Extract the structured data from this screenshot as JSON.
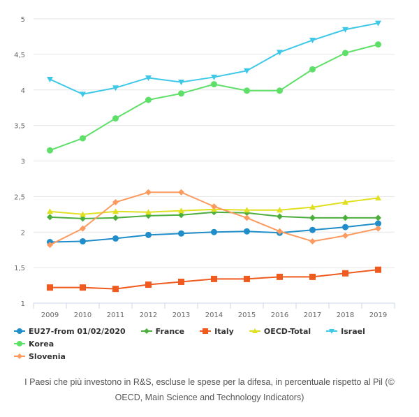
{
  "chart_data": {
    "type": "line",
    "title": "",
    "xlabel": "",
    "ylabel": "",
    "x": [
      "2009",
      "2010",
      "2011",
      "2012",
      "2013",
      "2014",
      "2015",
      "2016",
      "2017",
      "2018",
      "2019"
    ],
    "ylim": [
      1,
      5
    ],
    "yticks": [
      1,
      1.5,
      2,
      2.5,
      3,
      3.5,
      4,
      4.5,
      5
    ],
    "ytick_labels": [
      "1",
      "1,5",
      "2",
      "2,5",
      "3",
      "3,5",
      "4",
      "4,5",
      "5"
    ],
    "grid": true,
    "legend_position": "bottom-left",
    "series": [
      {
        "name": "EU27-from 01/02/2020",
        "color": "#1f8dc9",
        "marker": "circle",
        "values": [
          1.86,
          1.87,
          1.91,
          1.96,
          1.98,
          2.0,
          2.01,
          1.99,
          2.03,
          2.07,
          2.12
        ]
      },
      {
        "name": "France",
        "color": "#4cae3c",
        "marker": "diamond",
        "values": [
          2.21,
          2.19,
          2.2,
          2.23,
          2.24,
          2.28,
          2.27,
          2.22,
          2.2,
          2.2,
          2.2
        ]
      },
      {
        "name": "Italy",
        "color": "#f05a1e",
        "marker": "square",
        "values": [
          1.22,
          1.22,
          1.2,
          1.26,
          1.3,
          1.34,
          1.34,
          1.37,
          1.37,
          1.42,
          1.47
        ]
      },
      {
        "name": "OECD-Total",
        "color": "#e0e020",
        "marker": "triangle-up",
        "values": [
          2.29,
          2.25,
          2.29,
          2.28,
          2.3,
          2.32,
          2.31,
          2.31,
          2.35,
          2.42,
          2.48
        ]
      },
      {
        "name": "Israel",
        "color": "#3ec8e8",
        "marker": "triangle-down",
        "values": [
          4.15,
          3.94,
          4.03,
          4.17,
          4.11,
          4.18,
          4.27,
          4.53,
          4.7,
          4.85,
          4.94
        ]
      },
      {
        "name": "Korea",
        "color": "#5ee068",
        "marker": "circle",
        "values": [
          3.15,
          3.32,
          3.6,
          3.86,
          3.95,
          4.08,
          3.99,
          3.99,
          4.29,
          4.52,
          4.64
        ]
      },
      {
        "name": "Slovenia",
        "color": "#fd9a60",
        "marker": "diamond",
        "values": [
          1.82,
          2.05,
          2.42,
          2.56,
          2.56,
          2.36,
          2.2,
          2.01,
          1.87,
          1.95,
          2.05
        ]
      }
    ]
  },
  "caption": {
    "line1": "I Paesi che più investono in R&S, escluse le spese per la difesa, in percentuale rispetto al Pil (©",
    "line2": "OECD, Main Science and Technology Indicators)"
  }
}
